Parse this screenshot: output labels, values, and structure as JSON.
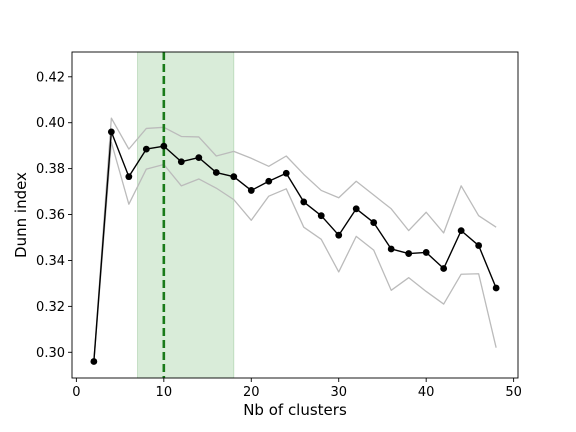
{
  "chart_data": {
    "type": "line",
    "title": "",
    "xlabel": "Nb of clusters",
    "ylabel": "Dunn index",
    "xlim": [
      -0.5,
      50.5
    ],
    "ylim": [
      0.2888,
      0.4308
    ],
    "xticks": [
      0,
      10,
      20,
      30,
      40,
      50
    ],
    "yticks": [
      0.3,
      0.32,
      0.34,
      0.36,
      0.38,
      0.4,
      0.42
    ],
    "x": [
      2,
      4,
      6,
      8,
      10,
      12,
      14,
      16,
      18,
      20,
      22,
      24,
      26,
      28,
      30,
      32,
      34,
      36,
      38,
      40,
      42,
      44,
      46,
      48
    ],
    "series": [
      {
        "role": "mean",
        "color": "#000000",
        "marker": "circle",
        "values": [
          0.296,
          0.396,
          0.3765,
          0.3885,
          0.3898,
          0.383,
          0.3848,
          0.3783,
          0.3765,
          0.3705,
          0.3745,
          0.378,
          0.3655,
          0.3595,
          0.351,
          0.3625,
          0.3565,
          0.345,
          0.343,
          0.3435,
          0.3365,
          0.353,
          0.3465,
          0.328
        ]
      },
      {
        "role": "upper bound",
        "color": "#bbbbbb",
        "values": [
          0.296,
          0.402,
          0.3885,
          0.3975,
          0.398,
          0.394,
          0.3938,
          0.3855,
          0.3875,
          0.3845,
          0.381,
          0.3855,
          0.3775,
          0.3705,
          0.3673,
          0.3745,
          0.3685,
          0.3625,
          0.353,
          0.361,
          0.352,
          0.3725,
          0.3595,
          0.3545
        ]
      },
      {
        "role": "lower bound",
        "color": "#bbbbbb",
        "values": [
          0.296,
          0.3915,
          0.3645,
          0.3798,
          0.3818,
          0.3725,
          0.3755,
          0.3715,
          0.3665,
          0.3575,
          0.368,
          0.3712,
          0.3545,
          0.3492,
          0.335,
          0.3505,
          0.3445,
          0.327,
          0.3325,
          0.3265,
          0.321,
          0.334,
          0.3342,
          0.302
        ]
      }
    ],
    "highlight_band": {
      "x_range": [
        7,
        18
      ],
      "color": "#d9ecd9"
    },
    "vertical_line": {
      "x": 10,
      "color": "#1a7a1a",
      "style": "dashed"
    },
    "grid": false,
    "legend": "none"
  }
}
